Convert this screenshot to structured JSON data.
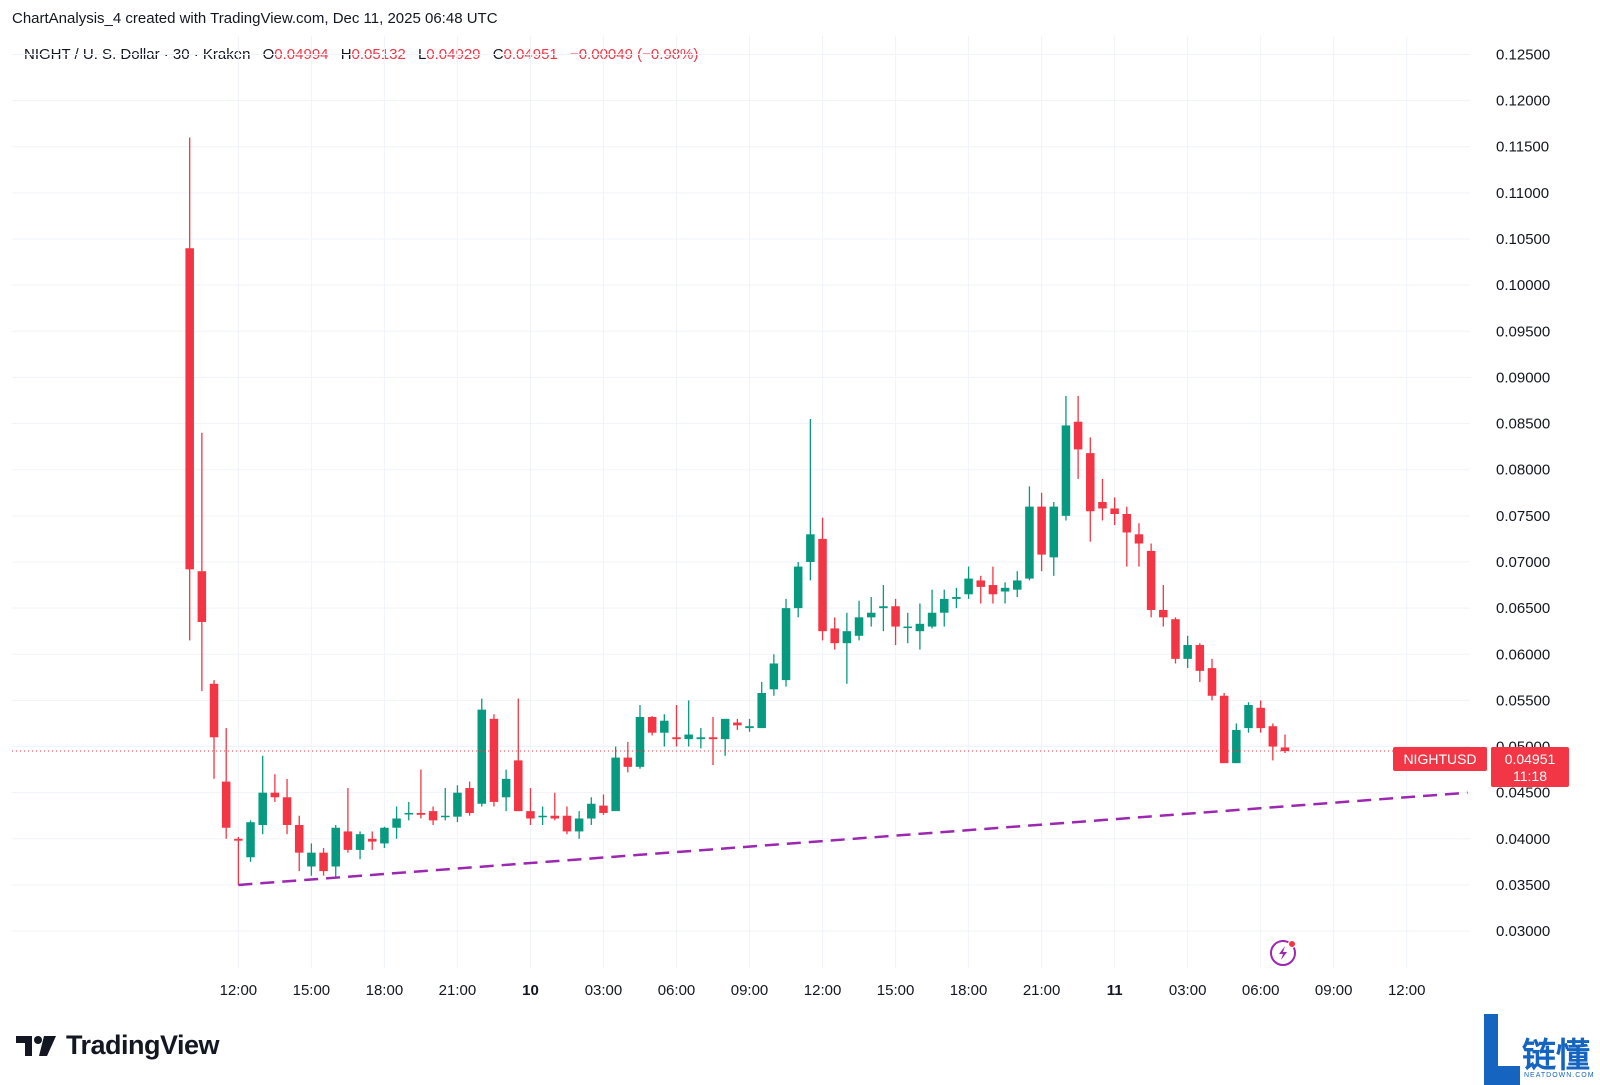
{
  "header": {
    "text": "ChartAnalysis_4 created with TradingView.com, Dec 11, 2025 06:48 UTC"
  },
  "legend": {
    "symbol": "NIGHT / U. S. Dollar · 30 · Kraken",
    "o_label": "O",
    "o_value": "0.04994",
    "h_label": "H",
    "h_value": "0.05132",
    "l_label": "L",
    "l_value": "0.04929",
    "c_label": "C",
    "c_value": "0.04951",
    "change": "−0.00049 (−0.98%)"
  },
  "price_tag": {
    "name": "NIGHTUSD",
    "price": "0.04951",
    "countdown": "11:18",
    "value": 0.04951
  },
  "colors": {
    "up": "#089981",
    "down": "#f23645",
    "trendline": "#9c27b0",
    "grid": "#f0f3fa",
    "text": "#131722"
  },
  "footer": {
    "brand": "TradingView",
    "watermark_cn": "链懂",
    "watermark_en": "NEATDOWN.COM"
  },
  "chart_data": {
    "type": "candlestick",
    "title": "NIGHT / U. S. Dollar · 30 · Kraken",
    "ylim": [
      0.026,
      0.127
    ],
    "y_ticks": [
      "0.12500",
      "0.12000",
      "0.11500",
      "0.11000",
      "0.10500",
      "0.10000",
      "0.09500",
      "0.09000",
      "0.08500",
      "0.08000",
      "0.07500",
      "0.07000",
      "0.06500",
      "0.06000",
      "0.05500",
      "0.05000",
      "0.04500",
      "0.04000",
      "0.03500",
      "0.03000"
    ],
    "x_ticks": [
      {
        "label": "12:00",
        "h": 12
      },
      {
        "label": "15:00",
        "h": 15
      },
      {
        "label": "18:00",
        "h": 18
      },
      {
        "label": "21:00",
        "h": 21
      },
      {
        "label": "10",
        "h": 24,
        "bold": true
      },
      {
        "label": "03:00",
        "h": 27
      },
      {
        "label": "06:00",
        "h": 30
      },
      {
        "label": "09:00",
        "h": 33
      },
      {
        "label": "12:00",
        "h": 36
      },
      {
        "label": "15:00",
        "h": 39
      },
      {
        "label": "18:00",
        "h": 42
      },
      {
        "label": "21:00",
        "h": 45
      },
      {
        "label": "11",
        "h": 48,
        "bold": true
      },
      {
        "label": "03:00",
        "h": 51
      },
      {
        "label": "06:00",
        "h": 54
      },
      {
        "label": "09:00",
        "h": 57
      },
      {
        "label": "12:00",
        "h": 60
      }
    ],
    "x_range_hours": [
      2.7,
      62.6
    ],
    "candle_interval_hours": 0.5,
    "first_candle_hour": 10.0,
    "ohlc": [
      [
        0.104,
        0.116,
        0.0615,
        0.0692
      ],
      [
        0.069,
        0.084,
        0.056,
        0.0635
      ],
      [
        0.0568,
        0.0572,
        0.0465,
        0.051
      ],
      [
        0.0462,
        0.052,
        0.04,
        0.0412
      ],
      [
        0.04,
        0.0402,
        0.035,
        0.0398
      ],
      [
        0.038,
        0.042,
        0.0375,
        0.0418
      ],
      [
        0.0415,
        0.049,
        0.0405,
        0.045
      ],
      [
        0.045,
        0.047,
        0.044,
        0.0445
      ],
      [
        0.0445,
        0.0465,
        0.0405,
        0.0415
      ],
      [
        0.0415,
        0.0425,
        0.0365,
        0.0385
      ],
      [
        0.037,
        0.0395,
        0.036,
        0.0385
      ],
      [
        0.0385,
        0.039,
        0.036,
        0.0365
      ],
      [
        0.037,
        0.0415,
        0.0358,
        0.0412
      ],
      [
        0.0408,
        0.0455,
        0.0385,
        0.0388
      ],
      [
        0.0388,
        0.0408,
        0.0378,
        0.0405
      ],
      [
        0.04,
        0.0408,
        0.0388,
        0.0397
      ],
      [
        0.0395,
        0.0413,
        0.039,
        0.0412
      ],
      [
        0.0412,
        0.0435,
        0.04,
        0.0422
      ],
      [
        0.0428,
        0.044,
        0.042,
        0.0428
      ],
      [
        0.0428,
        0.0475,
        0.0422,
        0.0426
      ],
      [
        0.043,
        0.0435,
        0.0415,
        0.042
      ],
      [
        0.0425,
        0.0455,
        0.042,
        0.0425
      ],
      [
        0.0424,
        0.0458,
        0.0418,
        0.045
      ],
      [
        0.0455,
        0.0462,
        0.0425,
        0.0428
      ],
      [
        0.0438,
        0.0552,
        0.0435,
        0.054
      ],
      [
        0.053,
        0.0535,
        0.0435,
        0.044
      ],
      [
        0.0445,
        0.0475,
        0.043,
        0.0465
      ],
      [
        0.0485,
        0.0552,
        0.043,
        0.043
      ],
      [
        0.043,
        0.0455,
        0.0415,
        0.0422
      ],
      [
        0.0425,
        0.0435,
        0.0415,
        0.0425
      ],
      [
        0.0425,
        0.045,
        0.042,
        0.0422
      ],
      [
        0.0425,
        0.0435,
        0.0405,
        0.0408
      ],
      [
        0.0408,
        0.043,
        0.04,
        0.0422
      ],
      [
        0.0422,
        0.0445,
        0.0415,
        0.0438
      ],
      [
        0.0436,
        0.0448,
        0.0426,
        0.0428
      ],
      [
        0.043,
        0.05,
        0.043,
        0.0488
      ],
      [
        0.0488,
        0.0505,
        0.0472,
        0.0478
      ],
      [
        0.0478,
        0.0545,
        0.0476,
        0.0532
      ],
      [
        0.0532,
        0.0533,
        0.0512,
        0.0515
      ],
      [
        0.0515,
        0.0535,
        0.05,
        0.0528
      ],
      [
        0.051,
        0.0545,
        0.05,
        0.0508
      ],
      [
        0.0508,
        0.055,
        0.05,
        0.0513
      ],
      [
        0.0508,
        0.052,
        0.0498,
        0.051
      ],
      [
        0.051,
        0.0532,
        0.048,
        0.0508
      ],
      [
        0.0508,
        0.053,
        0.049,
        0.053
      ],
      [
        0.0526,
        0.053,
        0.0518,
        0.0523
      ],
      [
        0.052,
        0.053,
        0.0516,
        0.0522
      ],
      [
        0.052,
        0.057,
        0.052,
        0.0558
      ],
      [
        0.0562,
        0.06,
        0.0555,
        0.059
      ],
      [
        0.0572,
        0.066,
        0.0565,
        0.065
      ],
      [
        0.065,
        0.07,
        0.064,
        0.0695
      ],
      [
        0.07,
        0.0855,
        0.068,
        0.073
      ],
      [
        0.0725,
        0.0748,
        0.0615,
        0.0625
      ],
      [
        0.0628,
        0.064,
        0.0605,
        0.0612
      ],
      [
        0.0612,
        0.0645,
        0.0568,
        0.0625
      ],
      [
        0.062,
        0.0658,
        0.0615,
        0.064
      ],
      [
        0.064,
        0.0662,
        0.063,
        0.0645
      ],
      [
        0.065,
        0.0675,
        0.0625,
        0.0652
      ],
      [
        0.0652,
        0.066,
        0.061,
        0.063
      ],
      [
        0.063,
        0.0645,
        0.0612,
        0.063
      ],
      [
        0.0625,
        0.0655,
        0.0605,
        0.0633
      ],
      [
        0.063,
        0.067,
        0.0628,
        0.0645
      ],
      [
        0.0645,
        0.067,
        0.063,
        0.066
      ],
      [
        0.066,
        0.0672,
        0.065,
        0.0662
      ],
      [
        0.0665,
        0.0695,
        0.066,
        0.0682
      ],
      [
        0.068,
        0.0685,
        0.0655,
        0.0673
      ],
      [
        0.0675,
        0.0695,
        0.0655,
        0.0665
      ],
      [
        0.0668,
        0.0678,
        0.0655,
        0.0672
      ],
      [
        0.067,
        0.069,
        0.0662,
        0.068
      ],
      [
        0.0682,
        0.0782,
        0.068,
        0.076
      ],
      [
        0.076,
        0.0775,
        0.069,
        0.0708
      ],
      [
        0.0705,
        0.0765,
        0.0685,
        0.076
      ],
      [
        0.075,
        0.088,
        0.0745,
        0.0848
      ],
      [
        0.0852,
        0.088,
        0.079,
        0.0822
      ],
      [
        0.0818,
        0.0835,
        0.0722,
        0.0755
      ],
      [
        0.0765,
        0.079,
        0.0745,
        0.0758
      ],
      [
        0.0758,
        0.077,
        0.074,
        0.0752
      ],
      [
        0.0752,
        0.076,
        0.0695,
        0.0732
      ],
      [
        0.073,
        0.0742,
        0.0695,
        0.072
      ],
      [
        0.0712,
        0.072,
        0.064,
        0.0648
      ],
      [
        0.0648,
        0.0675,
        0.063,
        0.064
      ],
      [
        0.0638,
        0.064,
        0.059,
        0.0595
      ],
      [
        0.0595,
        0.062,
        0.0585,
        0.061
      ],
      [
        0.061,
        0.0612,
        0.057,
        0.0582
      ],
      [
        0.0585,
        0.0595,
        0.055,
        0.0555
      ],
      [
        0.0555,
        0.0558,
        0.0482,
        0.0482
      ],
      [
        0.0482,
        0.0525,
        0.0482,
        0.0518
      ],
      [
        0.052,
        0.0548,
        0.0515,
        0.0545
      ],
      [
        0.0542,
        0.055,
        0.0515,
        0.052
      ],
      [
        0.0522,
        0.0525,
        0.0485,
        0.05
      ],
      [
        0.0499,
        0.0513,
        0.0493,
        0.0495
      ]
    ],
    "trendline": {
      "start": {
        "h": 12.0,
        "price": 0.035
      },
      "end": {
        "h": 62.5,
        "price": 0.045
      },
      "style": "dashed"
    }
  }
}
